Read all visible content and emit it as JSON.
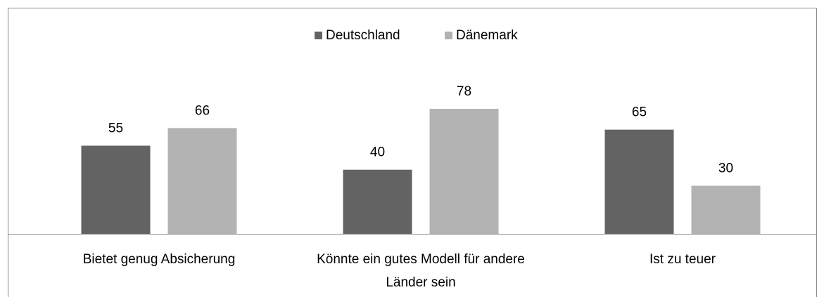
{
  "chart_data": {
    "type": "bar",
    "categories": [
      "Bietet genug Absicherung",
      "Könnte ein gutes Modell für andere Länder sein",
      "Ist zu teuer"
    ],
    "series": [
      {
        "name": "Deutschland",
        "color": "#636363",
        "values": [
          55,
          40,
          65
        ]
      },
      {
        "name": "Dänemark",
        "color": "#b3b3b3",
        "values": [
          66,
          78,
          30
        ]
      }
    ],
    "legend": "top"
  }
}
